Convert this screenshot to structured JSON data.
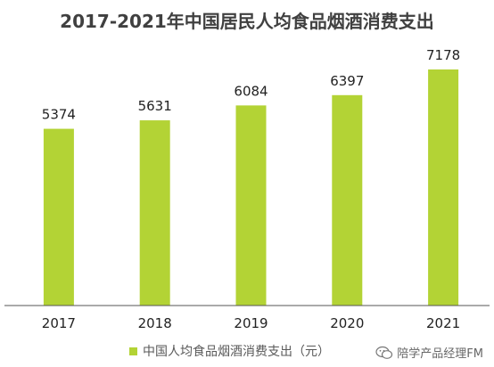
{
  "colors": {
    "bar": "#b3d335",
    "axis": "#555555",
    "text": "#222222"
  },
  "chart_data": {
    "type": "bar",
    "title": "2017-2021年中国居民人均食品烟酒消费支出",
    "categories": [
      "2017",
      "2018",
      "2019",
      "2020",
      "2021"
    ],
    "series": [
      {
        "name": "中国人均食品烟酒消费支出（元）",
        "values": [
          5374,
          5631,
          6084,
          6397,
          7178
        ]
      }
    ],
    "data_labels": [
      "5374",
      "5631",
      "6084",
      "6397",
      "7178"
    ],
    "ylim": [
      0,
      7800
    ],
    "grid": false,
    "legend_position": "bottom"
  },
  "watermark": {
    "text": "陪学产品经理FM",
    "icon": "wechat-icon"
  }
}
